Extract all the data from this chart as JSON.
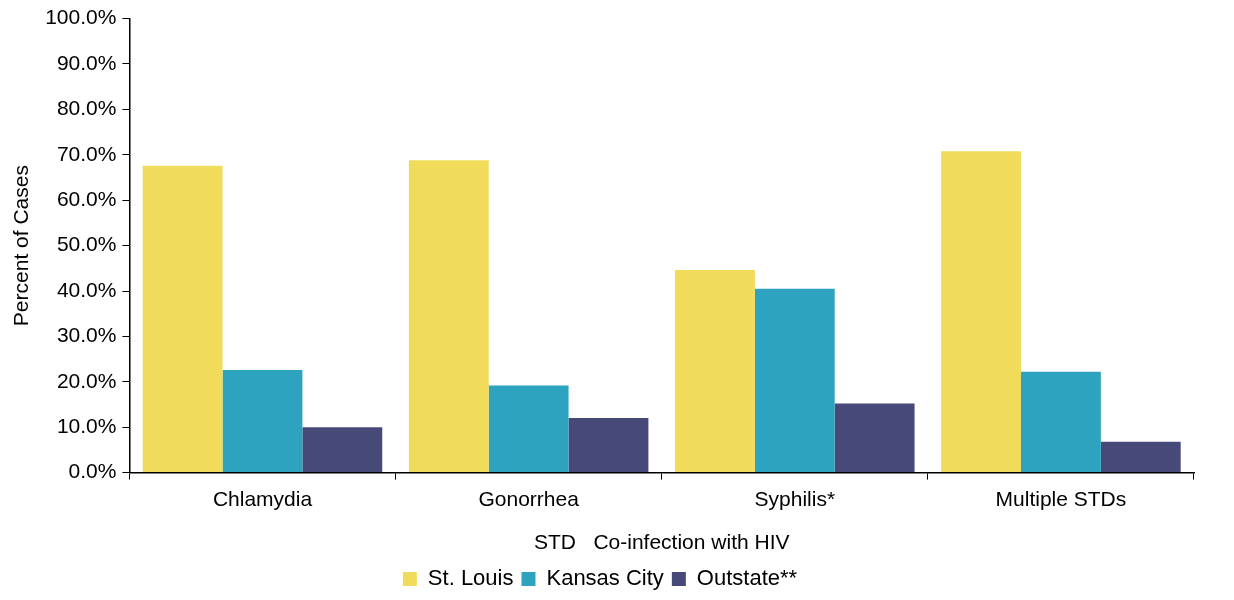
{
  "chart_data": {
    "type": "bar",
    "xlabel": "STD   Co-infection with HIV",
    "ylabel": "Percent of Cases",
    "categories": [
      "Chlamydia",
      "Gonorrhea",
      "Syphilis*",
      "Multiple STDs"
    ],
    "series": [
      {
        "name": "St. Louis",
        "color": "#f0dc5a",
        "values": [
          67.6,
          68.8,
          44.6,
          70.8
        ]
      },
      {
        "name": "Kansas City",
        "color": "#2ea3c0",
        "values": [
          22.6,
          19.2,
          40.5,
          22.2
        ]
      },
      {
        "name": "Outstate**",
        "color": "#474a78",
        "values": [
          10.0,
          12.0,
          15.2,
          6.8
        ]
      }
    ],
    "ylim": [
      0,
      100
    ],
    "yticks": [
      {
        "value": 0,
        "label": "0.0%"
      },
      {
        "value": 10,
        "label": "10.0%"
      },
      {
        "value": 20,
        "label": "20.0%"
      },
      {
        "value": 30,
        "label": "30.0%"
      },
      {
        "value": 40,
        "label": "40.0%"
      },
      {
        "value": 50,
        "label": "50.0%"
      },
      {
        "value": 60,
        "label": "60.0%"
      },
      {
        "value": 70,
        "label": "70.0%"
      },
      {
        "value": 80,
        "label": "80.0%"
      },
      {
        "value": 90,
        "label": "90.0%"
      },
      {
        "value": 100,
        "label": "100.0%"
      }
    ],
    "grid": false,
    "legend": "bottom"
  }
}
